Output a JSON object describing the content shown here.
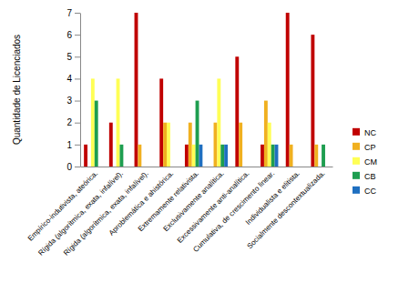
{
  "chart_data": {
    "type": "bar",
    "y_label": "Quantidade de Licenciados",
    "categories": [
      "Empírico-indutivista, ateórica.",
      "Rígida (algorítmica, exata, infalível).",
      "Rígida (algorítmica, exata, infalível).",
      "Aproblemática e ahistórica.",
      "Extremamente relativista.",
      "Exclusivamente analítica.",
      "Excessivamente anti-analítica.",
      "Cumulativa, de crescimento linear.",
      "Individualista e elitista.",
      "Socialmente descontextualizada."
    ],
    "series": [
      {
        "name": "NC",
        "color": "#c00000",
        "values": [
          1,
          2,
          7,
          4,
          1,
          0,
          5,
          1,
          7,
          6
        ]
      },
      {
        "name": "CP",
        "color": "#f0b020",
        "values": [
          0,
          0,
          1,
          2,
          2,
          2,
          2,
          3,
          1,
          1
        ]
      },
      {
        "name": "CM",
        "color": "#ffff55",
        "values": [
          4,
          4,
          0,
          2,
          1,
          4,
          0,
          2,
          0,
          0
        ]
      },
      {
        "name": "CB",
        "color": "#1e9e50",
        "values": [
          3,
          1,
          0,
          0,
          3,
          1,
          0,
          1,
          0,
          1
        ]
      },
      {
        "name": "CC",
        "color": "#1f6fc0",
        "values": [
          0,
          0,
          0,
          0,
          1,
          1,
          0,
          1,
          0,
          0
        ]
      }
    ],
    "ylim": [
      0,
      7
    ],
    "yticks": [
      0,
      1,
      2,
      3,
      4,
      5,
      6,
      7
    ],
    "grid": false,
    "legend": "right"
  }
}
